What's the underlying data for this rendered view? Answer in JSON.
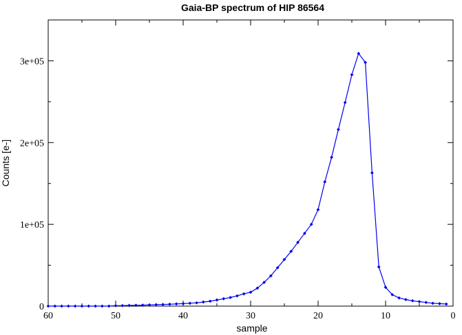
{
  "chart_data": {
    "type": "line",
    "title": "Gaia-BP spectrum of HIP 86564",
    "xlabel": "sample",
    "ylabel": "Counts [e-]",
    "x_reversed": true,
    "xlim": [
      60,
      0
    ],
    "ylim": [
      0,
      350000
    ],
    "x_ticks": [
      60,
      50,
      40,
      30,
      20,
      10,
      0
    ],
    "y_ticks": [
      0,
      100000,
      200000,
      300000
    ],
    "y_tick_labels": [
      "0",
      "1e+05",
      "2e+05",
      "3e+05"
    ],
    "line_color": "#0000ee",
    "grid": false,
    "series": [
      {
        "x": [
          60,
          59,
          58,
          57,
          56,
          55,
          54,
          53,
          52,
          51,
          50,
          49,
          48,
          47,
          46,
          45,
          44,
          43,
          42,
          41,
          40,
          39,
          38,
          37,
          36,
          35,
          34,
          33,
          32,
          31,
          30,
          29,
          28,
          27,
          26,
          25,
          24,
          23,
          22,
          21,
          20,
          19,
          18,
          17,
          16,
          15,
          14,
          13,
          12,
          11,
          10,
          9,
          8,
          7,
          6,
          5,
          4,
          3,
          2,
          1
        ],
        "values": [
          0,
          0,
          0,
          0,
          0,
          0,
          0,
          0,
          0,
          0,
          500,
          600,
          800,
          1000,
          1200,
          1500,
          1800,
          2000,
          2300,
          2700,
          3000,
          3500,
          4000,
          5000,
          6000,
          7500,
          9000,
          10500,
          12500,
          15000,
          17000,
          22000,
          29000,
          37000,
          47000,
          57000,
          67000,
          78000,
          89000,
          100000,
          118000,
          152000,
          182000,
          216000,
          249000,
          283000,
          309000,
          298000,
          163000,
          48000,
          23000,
          14000,
          10000,
          8000,
          6500,
          5500,
          4500,
          3500,
          3000,
          2500
        ]
      }
    ]
  }
}
